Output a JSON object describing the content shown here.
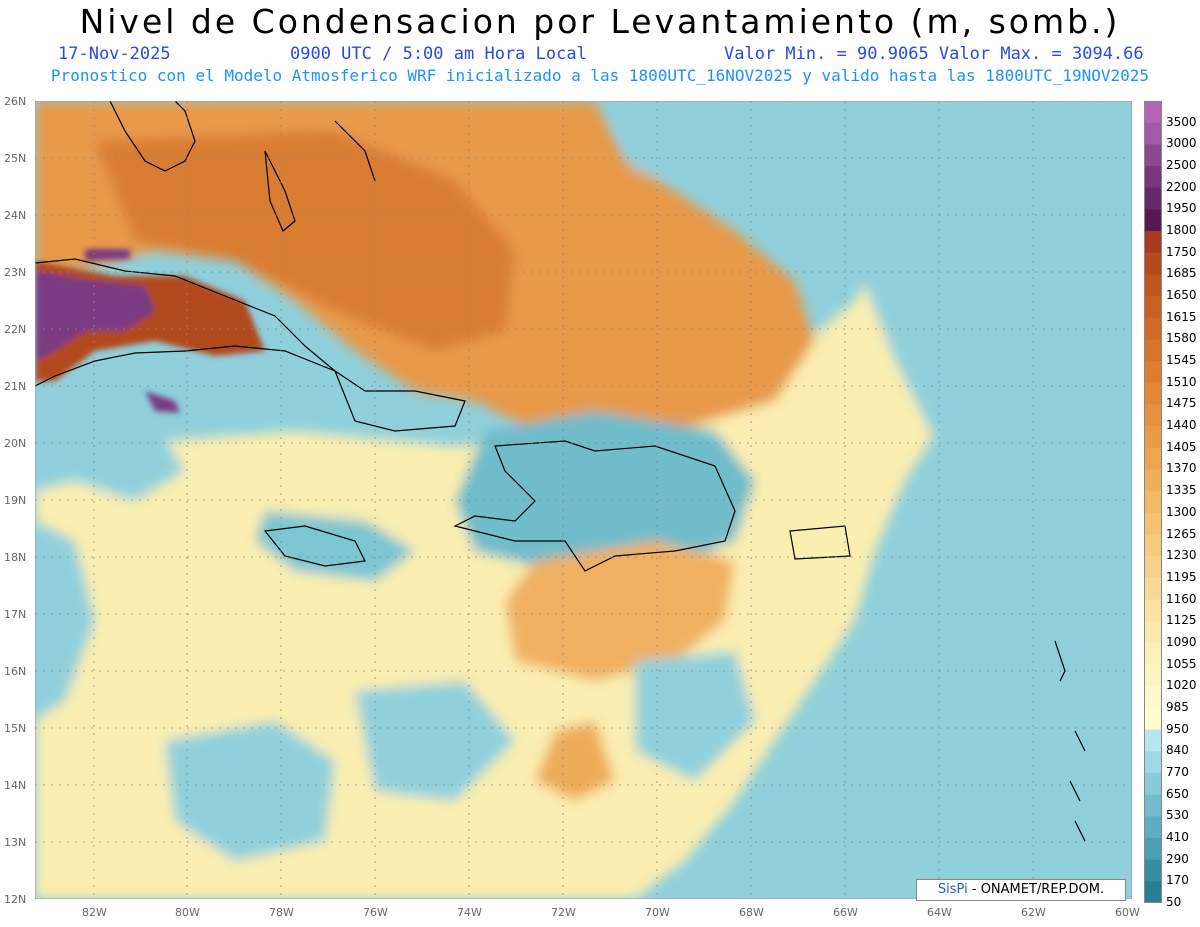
{
  "title": "Nivel de Condensacion por Levantamiento (m, somb.)",
  "date": "17-Nov-2025",
  "time": "0900 UTC / 5:00 am Hora Local",
  "minmax": "Valor Min. = 90.9065  Valor Max. = 3094.66",
  "forecast": "Pronostico con el Modelo Atmosferico WRF inicializado a las 1800UTC_16NOV2025 y valido hasta las  1800UTC_19NOV2025",
  "credit": {
    "brand": "SisPi",
    "text": " - ONAMET/REP.DOM."
  },
  "lat_labels": [
    "26N",
    "25N",
    "24N",
    "23N",
    "22N",
    "21N",
    "20N",
    "19N",
    "18N",
    "17N",
    "16N",
    "15N",
    "14N",
    "13N",
    "12N"
  ],
  "lon_labels": [
    "82W",
    "80W",
    "78W",
    "76W",
    "74W",
    "72W",
    "70W",
    "68W",
    "66W",
    "64W",
    "62W",
    "60W"
  ],
  "colorbar": {
    "labels": [
      "3500",
      "3000",
      "2500",
      "2200",
      "1950",
      "1800",
      "1750",
      "1685",
      "1650",
      "1615",
      "1580",
      "1545",
      "1510",
      "1475",
      "1440",
      "1405",
      "1370",
      "1335",
      "1300",
      "1265",
      "1230",
      "1195",
      "1160",
      "1125",
      "1090",
      "1055",
      "1020",
      "985",
      "950",
      "840",
      "770",
      "650",
      "530",
      "410",
      "290",
      "170",
      "50"
    ],
    "colors": [
      "#b564b5",
      "#a25aa6",
      "#8a4a92",
      "#77377d",
      "#66286c",
      "#55184f",
      "#a83b1c",
      "#b44a1e",
      "#bf5520",
      "#c96023",
      "#d16a26",
      "#d8732a",
      "#de7d2f",
      "#e38735",
      "#e6913d",
      "#ea9b46",
      "#eda550",
      "#f0af5b",
      "#f2b966",
      "#f4c272",
      "#f6ca7f",
      "#f7d28c",
      "#f8da98",
      "#f9e2a4",
      "#faeaaf",
      "#fbf0b9",
      "#fcf5c2",
      "#fdf9ca",
      "#fefcd2",
      "#b7e6ee",
      "#a0d8e5",
      "#89cbdb",
      "#72bccf",
      "#5eaec2",
      "#4c9fb3",
      "#3a8ea3",
      "#2a7d93"
    ]
  }
}
